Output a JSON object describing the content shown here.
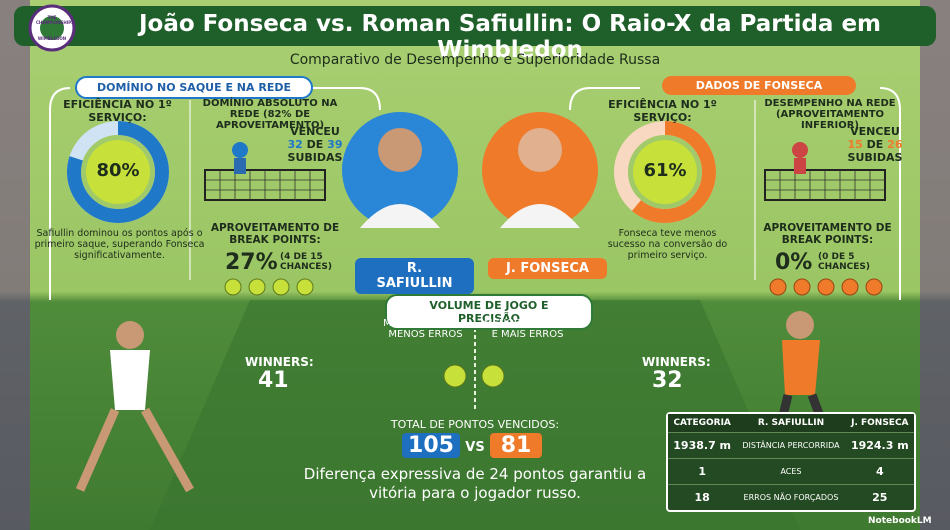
{
  "header": {
    "title": "João Fonseca vs. Roman Safiullin: O Raio-X da Partida em Wimbledon",
    "subtitle": "Comparativo de Desempenho e Superioridade Russa",
    "logo": {
      "top": "THE CHAMPIONSHIPS",
      "bottom": "WIMBLEDON"
    }
  },
  "safiullin": {
    "section": "DOMÍNIO NO SAQUE E NA REDE",
    "first_serve": {
      "label": "EFICIÊNCIA NO 1º SERVIÇO:",
      "value": "80%",
      "note": "Safiullin dominou os pontos após o primeiro saque, superando Fonseca significativamente."
    },
    "net": {
      "label": "DOMÍNIO ABSOLUTO NA REDE (82% DE APROVEITAMENTO)",
      "prefix": "VENCEU",
      "made": "32",
      "of": "DE",
      "total": "39",
      "suffix": "SUBIDAS"
    },
    "break_points": {
      "label": "APROVEITAMENTO DE BREAK POINTS:",
      "value": "27%",
      "detail": "(4 DE 15 CHANCES)"
    }
  },
  "players": [
    "R. SAFIULLIN",
    "J. FONSECA"
  ],
  "fonseca": {
    "section": "DADOS DE FONSECA",
    "first_serve": {
      "label": "EFICIÊNCIA NO 1º SERVIÇO:",
      "value": "61%",
      "note": "Fonseca teve menos sucesso na conversão do primeiro serviço."
    },
    "net": {
      "label": "DESEMPENHO NA REDE (APROVEITAMENTO INFERIOR)",
      "prefix": "VENCEU",
      "made": "15",
      "of": "DE",
      "total": "26",
      "suffix": "SUBIDAS"
    },
    "break_points": {
      "label": "APROVEITAMENTO DE BREAK POINTS:",
      "value": "0%",
      "detail": "(0 DE 5 CHANCES)"
    }
  },
  "volume": {
    "title": "VOLUME DE JOGO E PRECISÃO",
    "left_caption": "MAIS WINNERS E MENOS ERROS",
    "right_caption": "MENOS WINNERS E MAIS ERROS",
    "safiullin": {
      "label": "WINNERS:",
      "value": "41"
    },
    "fonseca": {
      "label": "WINNERS:",
      "value": "32"
    }
  },
  "total": {
    "label": "TOTAL DE PONTOS VENCIDOS:",
    "safiullin": "105",
    "vs": "VS",
    "fonseca": "81",
    "note": "Diferença expressiva de 24 pontos garantiu a vitória para o jogador russo."
  },
  "table": {
    "header": [
      "CATEGORIA",
      "R. SAFIULLIN",
      "J. FONSECA"
    ],
    "rows": [
      [
        "1938.7 m",
        "DISTÂNCIA PERCORRIDA",
        "1924.3 m"
      ],
      [
        "1",
        "ACES",
        "4"
      ],
      [
        "18",
        "ERROS NÃO FORÇADOS",
        "25"
      ]
    ]
  },
  "footer": "NotebookLM"
}
